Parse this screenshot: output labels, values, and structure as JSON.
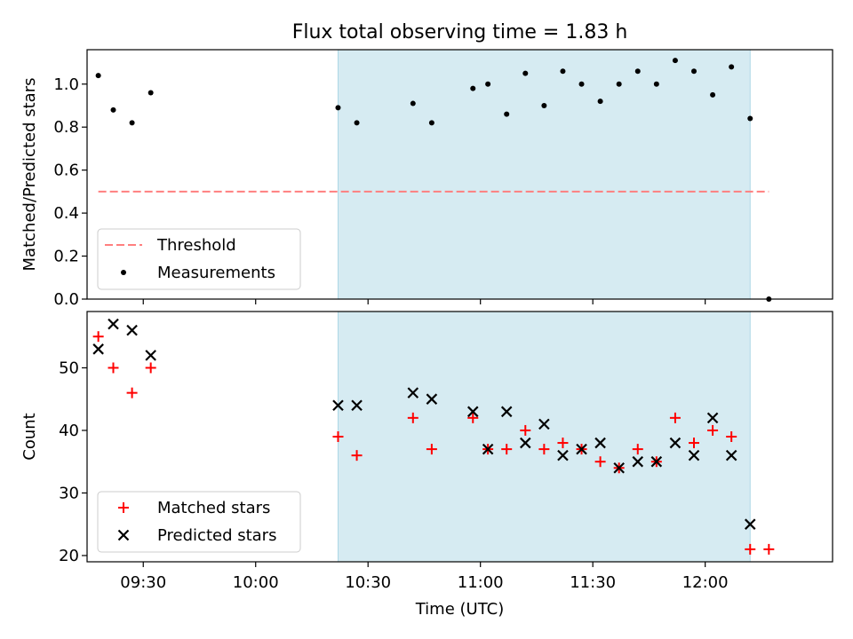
{
  "chart_data": [
    {
      "type": "scatter",
      "title": "Flux total observing time = 1.83 h",
      "xlabel": "",
      "ylabel": "Matched/Predicted stars",
      "xlim": [
        "09:15",
        "12:34"
      ],
      "ylim": [
        0,
        1.16
      ],
      "yticks": [
        "0.0",
        "0.2",
        "0.4",
        "0.6",
        "0.8",
        "1.0"
      ],
      "xticks_show_labels": false,
      "highlight_span": {
        "from": "10:22",
        "to": "12:12",
        "color": "#add8e6"
      },
      "threshold": {
        "name": "Threshold",
        "y": 0.5,
        "from": "09:18",
        "to": "12:17",
        "style": "dashed",
        "color": "#ff7f7f"
      },
      "series": [
        {
          "name": "Measurements",
          "color": "#000000",
          "marker": "dot",
          "x": [
            "09:18",
            "09:22",
            "09:27",
            "09:32",
            "10:22",
            "10:27",
            "10:42",
            "10:47",
            "10:58",
            "11:02",
            "11:07",
            "11:12",
            "11:17",
            "11:22",
            "11:27",
            "11:32",
            "11:37",
            "11:42",
            "11:47",
            "11:52",
            "11:57",
            "12:02",
            "12:07",
            "12:12",
            "12:17"
          ],
          "y": [
            1.04,
            0.88,
            0.82,
            0.96,
            0.89,
            0.82,
            0.91,
            0.82,
            0.98,
            1.0,
            0.86,
            1.05,
            0.9,
            1.06,
            1.0,
            0.92,
            1.0,
            1.06,
            1.0,
            1.11,
            1.06,
            0.95,
            1.08,
            0.84,
            0.0
          ]
        }
      ],
      "legend": {
        "placement": "lower-left",
        "entries": [
          "Threshold",
          "Measurements"
        ]
      }
    },
    {
      "type": "scatter",
      "title": "",
      "xlabel": "Time (UTC)",
      "ylabel": "Count",
      "xlim": [
        "09:15",
        "12:34"
      ],
      "ylim": [
        19,
        59
      ],
      "yticks": [
        "20",
        "30",
        "40",
        "50"
      ],
      "xticks": [
        "09:30",
        "10:00",
        "10:30",
        "11:00",
        "11:30",
        "12:00"
      ],
      "highlight_span": {
        "from": "10:22",
        "to": "12:12",
        "color": "#add8e6"
      },
      "series": [
        {
          "name": "Matched stars",
          "color": "#ff0000",
          "marker": "plus",
          "x": [
            "09:18",
            "09:22",
            "09:27",
            "09:32",
            "10:22",
            "10:27",
            "10:42",
            "10:47",
            "10:58",
            "11:02",
            "11:07",
            "11:12",
            "11:17",
            "11:22",
            "11:27",
            "11:32",
            "11:37",
            "11:42",
            "11:47",
            "11:52",
            "11:57",
            "12:02",
            "12:07",
            "12:12",
            "12:17"
          ],
          "y": [
            55,
            50,
            46,
            50,
            39,
            36,
            42,
            37,
            42,
            37,
            37,
            40,
            37,
            38,
            37,
            35,
            34,
            37,
            35,
            42,
            38,
            40,
            39,
            21,
            21
          ]
        },
        {
          "name": "Predicted stars",
          "color": "#000000",
          "marker": "x",
          "x": [
            "09:18",
            "09:22",
            "09:27",
            "09:32",
            "10:22",
            "10:27",
            "10:42",
            "10:47",
            "10:58",
            "11:02",
            "11:07",
            "11:12",
            "11:17",
            "11:22",
            "11:27",
            "11:32",
            "11:37",
            "11:42",
            "11:47",
            "11:52",
            "11:57",
            "12:02",
            "12:07",
            "12:12"
          ],
          "y": [
            53,
            57,
            56,
            52,
            44,
            44,
            46,
            45,
            43,
            37,
            43,
            38,
            41,
            36,
            37,
            38,
            34,
            35,
            35,
            38,
            36,
            42,
            36,
            25
          ]
        }
      ],
      "legend": {
        "placement": "lower-left",
        "entries": [
          "Matched stars",
          "Predicted stars"
        ]
      }
    }
  ]
}
